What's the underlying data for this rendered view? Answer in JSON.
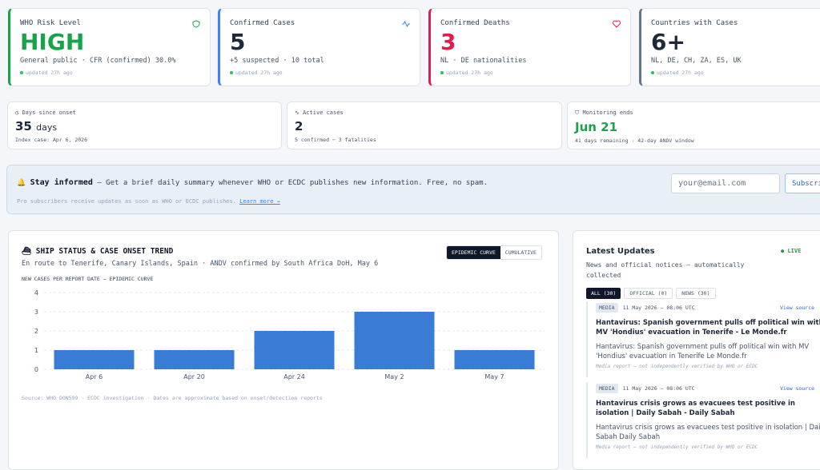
{
  "stats": [
    {
      "label": "WHO Risk Level",
      "value": "HIGH",
      "detail": "General public · CFR (confirmed) 30.0%",
      "updated": "updated 27h ago"
    },
    {
      "label": "Confirmed Cases",
      "value": "5",
      "detail": "+5 suspected · 10 total",
      "updated": "updated 27h ago"
    },
    {
      "label": "Confirmed Deaths",
      "value": "3",
      "detail": "NL · DE nationalities",
      "updated": "updated 27h ago"
    },
    {
      "label": "Countries with Cases",
      "value": "6+",
      "detail": "NL, DE, CH, ZA, ES, UK",
      "updated": "updated 27h ago"
    }
  ],
  "mini": [
    {
      "label": "Days since onset",
      "value": "35",
      "unit": "days",
      "detail": "Index case: Apr 6, 2026"
    },
    {
      "label": "Active cases",
      "value": "2",
      "detail": "5 confirmed − 3 fatalities"
    },
    {
      "label": "Monitoring ends",
      "value": "Jun 21",
      "detail": "41 days remaining · 42-day ANDV window"
    }
  ],
  "subscribe": {
    "title": "Stay informed",
    "text": "— Get a brief daily summary whenever WHO or ECDC publishes new information. Free, no spam.",
    "placeholder": "your@email.com",
    "button": "Subscribe",
    "note": "Pro subscribers receive updates as soon as WHO or ECDC publishes.",
    "link": "Learn more →"
  },
  "chart_data": {
    "type": "bar",
    "title": "SHIP STATUS & CASE ONSET TREND",
    "subtitle": "En route to Tenerife, Canary Islands, Spain · ANDV confirmed by South Africa DoH, May 6",
    "toggles": [
      "EPIDEMIC CURVE",
      "CUMULATIVE"
    ],
    "y_label": "NEW CASES PER REPORT DATE — EPIDEMIC CURVE",
    "source": "Source: WHO DON599 · ECDC investigation · Dates are approximate based on onset/detection reports",
    "categories": [
      "Apr 6",
      "Apr 20",
      "Apr 24",
      "May 2",
      "May 7"
    ],
    "values": [
      1,
      1,
      2,
      3,
      1
    ],
    "color": "#3a7bd5",
    "ylim": [
      0,
      4
    ],
    "yticks": [
      0,
      1,
      2,
      3,
      4
    ],
    "grid": true
  },
  "updates": {
    "title": "Latest Updates",
    "subtitle": "News and official notices — automatically collected",
    "live": "LIVE",
    "tabs": [
      "ALL (30)",
      "OFFICIAL (0)",
      "NEWS (30)"
    ],
    "items": [
      {
        "tag": "MEDIA",
        "date": "11 May 2026 — 08:06 UTC",
        "source": "View source",
        "title": "Hantavirus: Spanish government pulls off political win with MV 'Hondius' evacuation in Tenerife - Le Monde.fr",
        "summary": "Hantavirus: Spanish government pulls off political win with MV 'Hondius' evacuation in Tenerife Le Monde.fr",
        "note": "Media report — not independently verified by WHO or ECDC"
      },
      {
        "tag": "MEDIA",
        "date": "11 May 2026 — 08:06 UTC",
        "source": "View source",
        "title": "Hantavirus crisis grows as evacuees test positive in isolation | Daily Sabah - Daily Sabah",
        "summary": "Hantavirus crisis grows as evacuees test positive in isolation | Daily Sabah Daily Sabah",
        "note": "Media report — not independently verified by WHO or ECDC"
      }
    ]
  }
}
